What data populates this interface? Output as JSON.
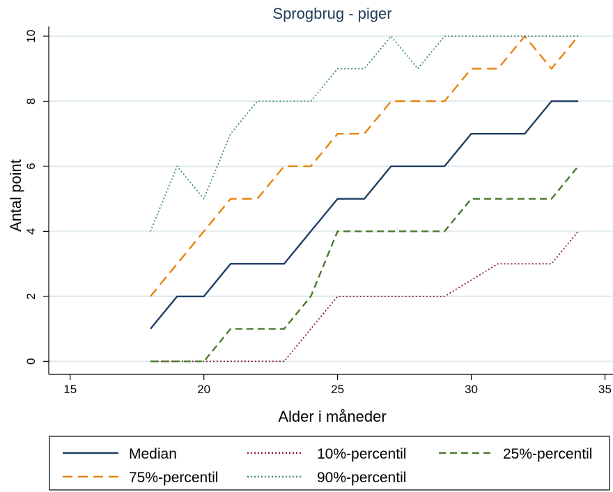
{
  "chart_data": {
    "type": "line",
    "title": "Sprogbrug - piger",
    "xlabel": "Alder i måneder",
    "ylabel": "Antal point",
    "xlim": [
      14.2,
      35.3
    ],
    "ylim": [
      -0.4,
      10.3
    ],
    "xticks": [
      15,
      20,
      25,
      30,
      35
    ],
    "yticks": [
      0,
      2,
      4,
      6,
      8,
      10
    ],
    "grid": true,
    "legend_position": "bottom",
    "series": [
      {
        "name": "Median",
        "color": "#1f3f66",
        "dash": "solid",
        "x": [
          18,
          19,
          20,
          21,
          22,
          23,
          24,
          25,
          26,
          27,
          28,
          29,
          30,
          31,
          32,
          33,
          34
        ],
        "y": [
          1,
          2,
          2,
          3,
          3,
          3,
          4,
          5,
          5,
          6,
          6,
          6,
          7,
          7,
          7,
          8,
          8
        ]
      },
      {
        "name": "10%-percentil",
        "color": "#8b1a2b",
        "dash": "dotted",
        "x": [
          18,
          19,
          20,
          21,
          22,
          23,
          24,
          25,
          26,
          27,
          28,
          29,
          30,
          31,
          32,
          33,
          34
        ],
        "y": [
          0,
          0,
          0,
          0,
          0,
          0,
          1,
          2,
          2,
          2,
          2,
          2,
          2.5,
          3,
          3,
          3,
          4
        ]
      },
      {
        "name": "25%-percentil",
        "color": "#4a7a2c",
        "dash": "dashed",
        "x": [
          18,
          19,
          20,
          21,
          22,
          23,
          24,
          25,
          26,
          27,
          28,
          29,
          30,
          31,
          32,
          33,
          34
        ],
        "y": [
          0,
          0,
          0,
          1,
          1,
          1,
          2,
          4,
          4,
          4,
          4,
          4,
          5,
          5,
          5,
          5,
          6
        ]
      },
      {
        "name": "75%-percentil",
        "color": "#e8820c",
        "dash": "longdash",
        "x": [
          18,
          19,
          20,
          21,
          22,
          23,
          24,
          25,
          26,
          27,
          28,
          29,
          30,
          31,
          32,
          33,
          34
        ],
        "y": [
          2,
          3,
          4,
          5,
          5,
          6,
          6,
          7,
          7,
          8,
          8,
          8,
          9,
          9,
          10,
          9,
          10
        ]
      },
      {
        "name": "90%-percentil",
        "color": "#3f8c7a",
        "dash": "dotted",
        "x": [
          18,
          19,
          20,
          21,
          22,
          23,
          24,
          25,
          26,
          27,
          28,
          29,
          30,
          31,
          32,
          33,
          34
        ],
        "y": [
          4,
          6,
          5,
          7,
          8,
          8,
          8,
          9,
          9,
          10,
          9,
          10,
          10,
          10,
          10,
          10,
          10
        ]
      }
    ]
  }
}
